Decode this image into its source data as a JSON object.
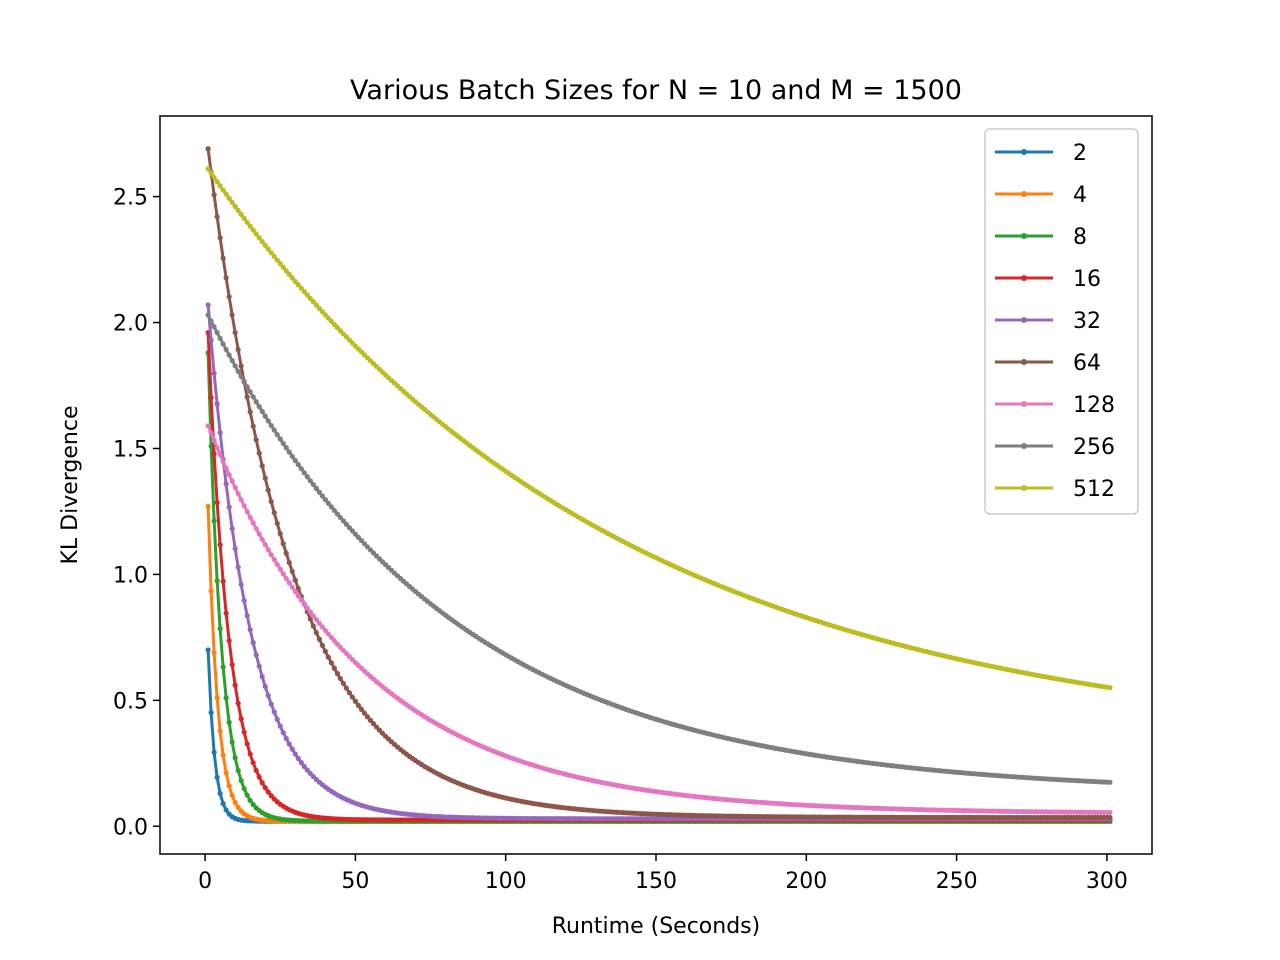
{
  "chart_data": {
    "type": "line",
    "title": "Various Batch Sizes for N = 10 and M = 1500",
    "xlabel": "Runtime (Seconds)",
    "ylabel": "KL Divergence",
    "xlim": [
      -15,
      315
    ],
    "ylim": [
      -0.11,
      2.82
    ],
    "xticks": [
      0,
      50,
      100,
      150,
      200,
      250,
      300
    ],
    "xtick_labels": [
      "0",
      "50",
      "100",
      "150",
      "200",
      "250",
      "300"
    ],
    "yticks": [
      0.0,
      0.5,
      1.0,
      1.5,
      2.0,
      2.5
    ],
    "ytick_labels": [
      "0.0",
      "0.5",
      "1.0",
      "1.5",
      "2.0",
      "2.5"
    ],
    "grid": false,
    "legend_position": "top-right",
    "x_range": [
      1,
      301
    ],
    "series": [
      {
        "name": "2",
        "color": "#1f77b4",
        "start": 0.7,
        "floor": 0.02,
        "tau": 2.2,
        "x_end": 301
      },
      {
        "name": "4",
        "color": "#ff7f0e",
        "start": 1.27,
        "floor": 0.02,
        "tau": 3.2,
        "x_end": 301
      },
      {
        "name": "8",
        "color": "#2ca02c",
        "start": 1.88,
        "floor": 0.02,
        "tau": 4.5,
        "x_end": 301
      },
      {
        "name": "16",
        "color": "#d62728",
        "start": 1.96,
        "floor": 0.025,
        "tau": 7.0,
        "x_end": 301
      },
      {
        "name": "32",
        "color": "#9467bd",
        "start": 2.07,
        "floor": 0.03,
        "tau": 14.0,
        "x_end": 301
      },
      {
        "name": "64",
        "color": "#8c564b",
        "start": 2.69,
        "floor": 0.035,
        "tau": 28.0,
        "x_end": 301
      },
      {
        "name": "128",
        "color": "#e377c2",
        "start": 1.59,
        "floor": 0.05,
        "tau": 52.0,
        "x_end": 301
      },
      {
        "name": "256",
        "color": "#7f7f7f",
        "start": 2.03,
        "floor": 0.13,
        "tau": 80.0,
        "x_end": 301
      },
      {
        "name": "512",
        "color": "#bcbd22",
        "start": 2.61,
        "floor": 0.3,
        "tau": 135.0,
        "x_end": 301
      }
    ]
  }
}
